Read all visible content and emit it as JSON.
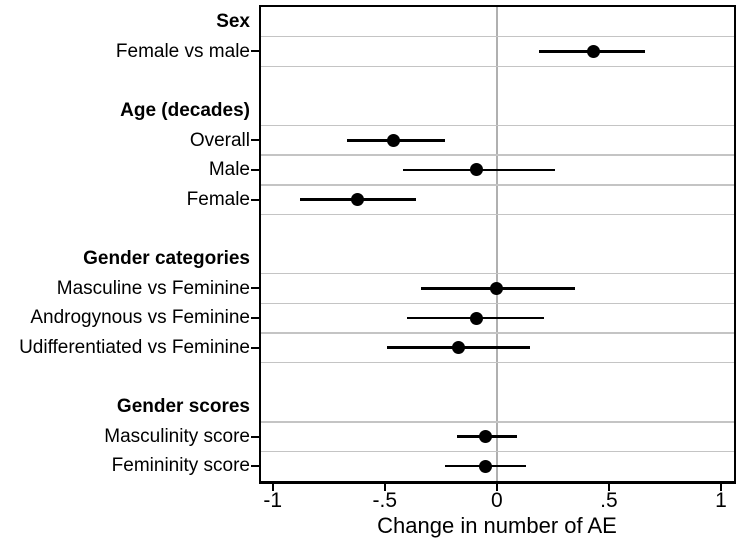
{
  "chart_data": {
    "type": "forest",
    "title": "",
    "x_axis": {
      "title": "Change in number of AE",
      "range": [
        -1.05,
        1.06
      ],
      "ticks": [
        {
          "value": -1,
          "label": "-1"
        },
        {
          "value": -0.5,
          "label": "-.5"
        },
        {
          "value": 0,
          "label": "0"
        },
        {
          "value": 0.5,
          "label": ".5"
        },
        {
          "value": 1,
          "label": "1"
        }
      ],
      "zero_line": true
    },
    "rows": [
      {
        "type": "header",
        "label": "Sex"
      },
      {
        "type": "item",
        "label": "Female vs male",
        "value": 0.43,
        "ci": [
          0.19,
          0.66
        ]
      },
      {
        "type": "blank",
        "label": ""
      },
      {
        "type": "header",
        "label": "Age (decades)"
      },
      {
        "type": "item",
        "label": "Overall",
        "value": -0.46,
        "ci": [
          -0.67,
          -0.23
        ]
      },
      {
        "type": "item",
        "label": "Male",
        "value": -0.09,
        "ci": [
          -0.42,
          0.26
        ]
      },
      {
        "type": "item",
        "label": "Female",
        "value": -0.62,
        "ci": [
          -0.88,
          -0.36
        ]
      },
      {
        "type": "blank",
        "label": ""
      },
      {
        "type": "header",
        "label": "Gender categories"
      },
      {
        "type": "item",
        "label": "Masculine vs Feminine",
        "value": 0.0,
        "ci": [
          -0.34,
          0.35
        ]
      },
      {
        "type": "item",
        "label": "Androgynous vs Feminine",
        "value": -0.09,
        "ci": [
          -0.4,
          0.21
        ]
      },
      {
        "type": "item",
        "label": "Udifferentiated vs Feminine",
        "value": -0.17,
        "ci": [
          -0.49,
          0.15
        ]
      },
      {
        "type": "blank",
        "label": ""
      },
      {
        "type": "header",
        "label": "Gender scores"
      },
      {
        "type": "item",
        "label": "Masculinity score",
        "value": -0.05,
        "ci": [
          -0.18,
          0.09
        ]
      },
      {
        "type": "item",
        "label": "Femininity score",
        "value": -0.05,
        "ci": [
          -0.23,
          0.13
        ]
      }
    ],
    "colors": {
      "marker": "#000000",
      "ci_line": "#000000",
      "gridline": "#c4c4c4",
      "zero_line": "#b0b0b0",
      "frame": "#000000",
      "text": "#000000",
      "background": "#ffffff"
    },
    "legend": "none",
    "grid": "horizontal"
  }
}
